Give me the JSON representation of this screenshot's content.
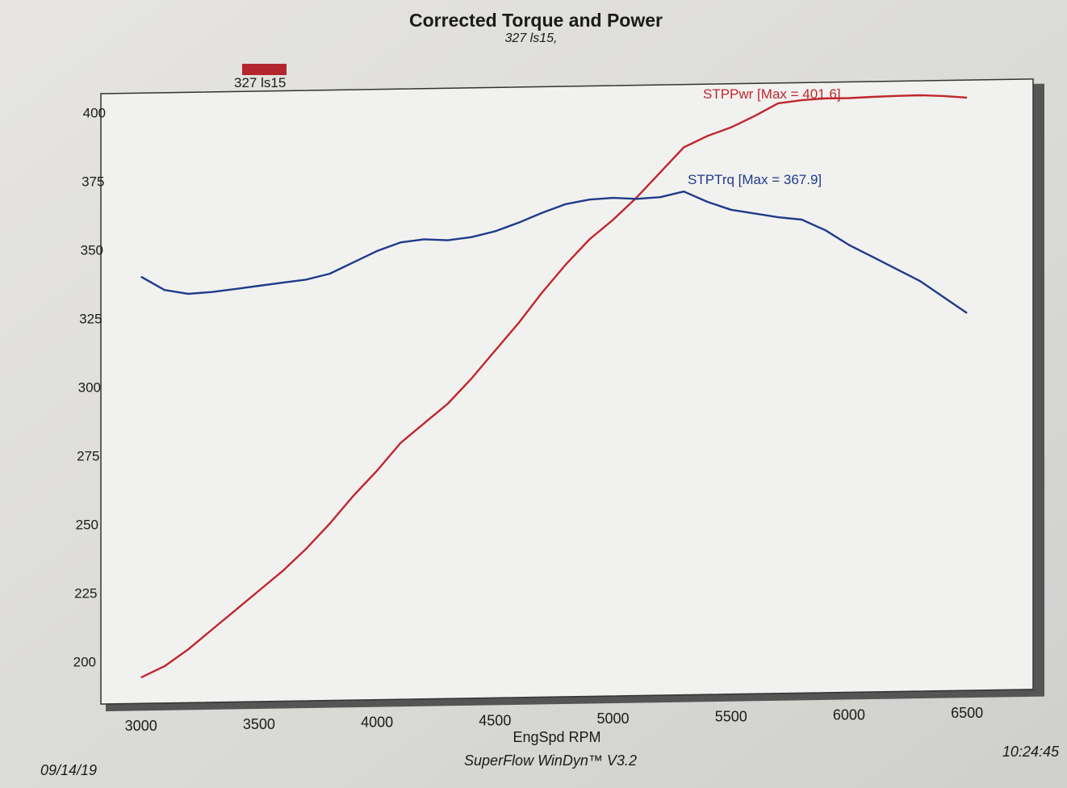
{
  "chart_data": {
    "type": "line",
    "title": "Corrected Torque and Power",
    "subtitle": "327 ls15,",
    "legend": {
      "label": "327 ls15",
      "color": "#b3262e",
      "placement": "top-left"
    },
    "xlabel": "EngSpd RPM",
    "ylabel": "",
    "xlim": [
      2830,
      6780
    ],
    "ylim": [
      184,
      411
    ],
    "xticks": [
      3000,
      3500,
      4000,
      4500,
      5000,
      5500,
      6000,
      6500
    ],
    "yticks": [
      200,
      225,
      250,
      275,
      300,
      325,
      350,
      375,
      400
    ],
    "grid": false,
    "x": [
      3000,
      3100,
      3200,
      3300,
      3400,
      3500,
      3600,
      3700,
      3800,
      3900,
      4000,
      4100,
      4200,
      4300,
      4400,
      4500,
      4600,
      4700,
      4800,
      4900,
      5000,
      5100,
      5200,
      5300,
      5400,
      5500,
      5600,
      5700,
      5800,
      5900,
      6000,
      6100,
      6200,
      6300,
      6400,
      6500
    ],
    "series": [
      {
        "name": "STPPwr [Max = 401.6]",
        "color": "#c0262e",
        "values": [
          194,
          198,
          204,
          211,
          218,
          225,
          232,
          240,
          249,
          259,
          268,
          278,
          285,
          292,
          301,
          311,
          321,
          332,
          342,
          351,
          358,
          366,
          375,
          384,
          388,
          391,
          395,
          399.5,
          400.5,
          401,
          401,
          401.3,
          401.5,
          401.6,
          401.2,
          400.5
        ]
      },
      {
        "name": "STPTrq [Max = 367.9]",
        "color": "#1f3a8a",
        "values": [
          340,
          335,
          333.5,
          334,
          335,
          336,
          337,
          338,
          340,
          344,
          348,
          351,
          352,
          351.5,
          352.5,
          354.5,
          357.5,
          361,
          364,
          365.5,
          366,
          365.5,
          366,
          367.9,
          364,
          361,
          359.5,
          358,
          357,
          353,
          347.5,
          343,
          338.5,
          334,
          328,
          322
        ]
      }
    ],
    "footer": {
      "date": "09/14/19",
      "software": "SuperFlow WinDyn™ V3.2",
      "time": "10:24:45"
    }
  }
}
